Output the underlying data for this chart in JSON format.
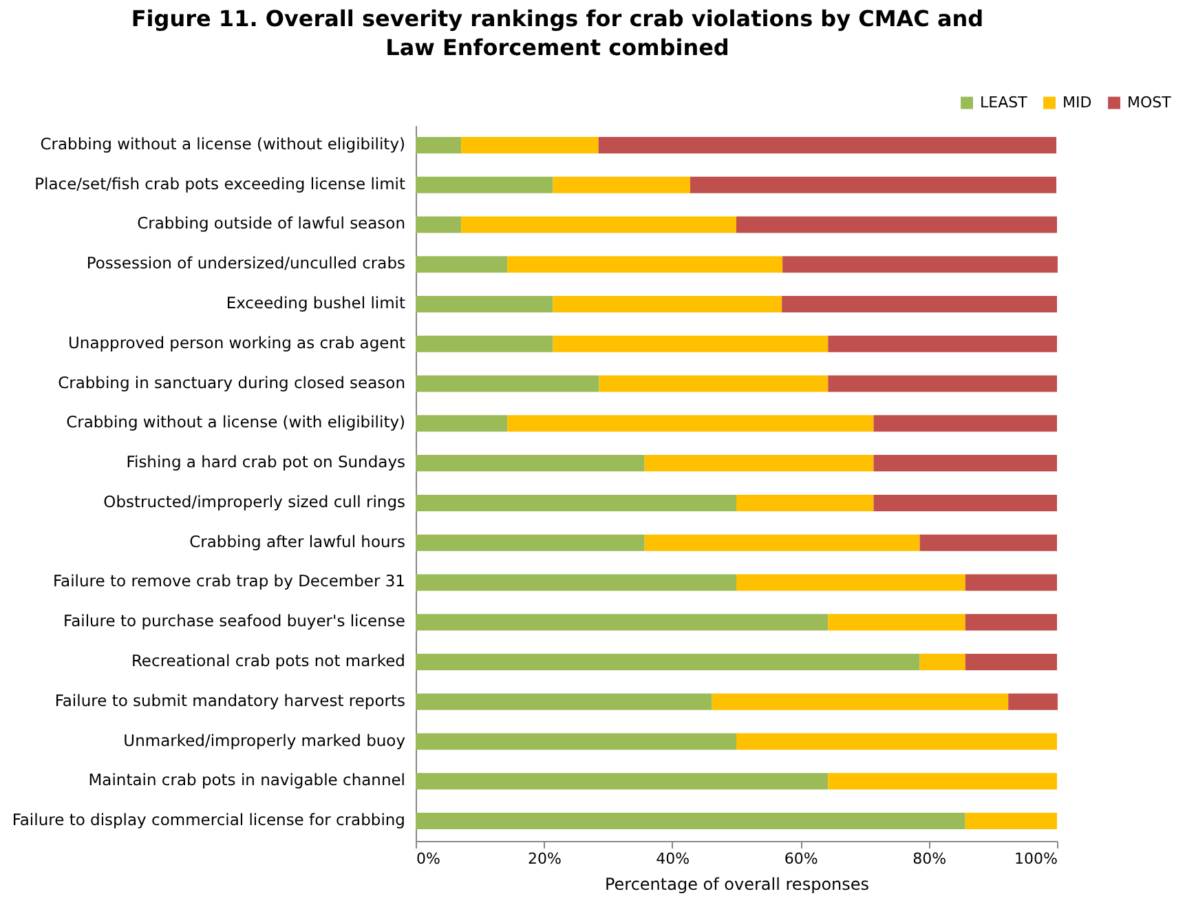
{
  "chart_data": {
    "type": "bar",
    "orientation": "horizontal",
    "stacked": true,
    "title": "Figure 11. Overall severity rankings for crab violations by CMAC and Law Enforcement combined",
    "xlabel": "Percentage of overall responses",
    "categories": [
      "Crabbing without a license (without eligibility)",
      "Place/set/fish crab pots exceeding license limit",
      "Crabbing outside of lawful season",
      "Possession of undersized/unculled crabs",
      "Exceeding bushel limit",
      "Unapproved person working as crab agent",
      "Crabbing in sanctuary during closed season",
      "Crabbing without a license (with eligibility)",
      "Fishing a hard crab pot on Sundays",
      "Obstructed/improperly sized cull rings",
      "Crabbing after lawful hours",
      "Failure to remove crab trap by December 31",
      "Failure to purchase seafood buyer's license",
      "Recreational crab pots not marked",
      "Failure to submit mandatory harvest reports",
      "Unmarked/improperly marked buoy",
      "Maintain crab pots in navigable channel",
      "Failure to display commercial license for crabbing"
    ],
    "series": [
      {
        "name": "LEAST",
        "color": "#9bbb59",
        "values": [
          7.1,
          21.4,
          7.1,
          14.3,
          21.4,
          21.4,
          28.6,
          14.3,
          35.7,
          50,
          35.7,
          50,
          64.3,
          78.6,
          46.2,
          50,
          64.3,
          85.7
        ]
      },
      {
        "name": "MID",
        "color": "#ffc000",
        "values": [
          21.4,
          21.4,
          42.9,
          42.9,
          35.7,
          42.9,
          35.7,
          57.1,
          35.7,
          21.4,
          42.9,
          35.7,
          21.4,
          7.1,
          46.2,
          50,
          35.7,
          14.3
        ]
      },
      {
        "name": "MOST",
        "color": "#c0504d",
        "values": [
          71.4,
          57.1,
          50,
          42.9,
          42.9,
          35.7,
          35.7,
          28.6,
          28.6,
          28.6,
          21.4,
          14.3,
          14.3,
          14.3,
          7.7,
          0,
          0,
          0
        ]
      }
    ],
    "xlim": [
      0,
      100
    ],
    "xticks": [
      {
        "value": 0,
        "label": "0%"
      },
      {
        "value": 20,
        "label": "20%"
      },
      {
        "value": 40,
        "label": "40%"
      },
      {
        "value": 60,
        "label": "60%"
      },
      {
        "value": 80,
        "label": "80%"
      },
      {
        "value": 100,
        "label": "100%"
      }
    ],
    "grid": false,
    "legend": "top right"
  }
}
